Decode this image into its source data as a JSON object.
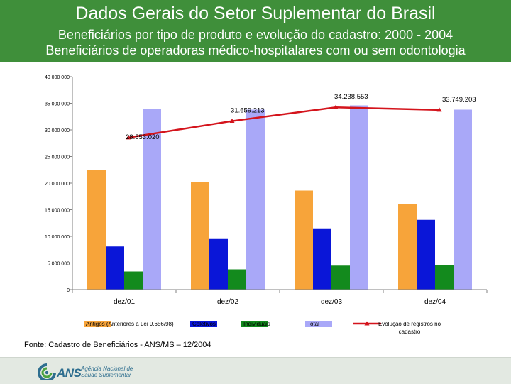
{
  "header": {
    "title": "Dados Gerais do Setor Suplementar do Brasil",
    "subtitle1": "Beneficiários por tipo de produto e evolução do cadastro: 2000 - 2004",
    "subtitle2": "Beneficiários de operadoras médico-hospitalares com ou sem odontologia"
  },
  "source": "Fonte: Cadastro de Beneficiários - ANS/MS – 12/2004",
  "footer": {
    "logo_name": "ANS",
    "logo_line1": "Agência Nacional de",
    "logo_line2": "Saúde Suplementar"
  },
  "colors": {
    "header_bg": "#3f8f3a",
    "antigos": "#f7a43a",
    "coletivos": "#0a16d8",
    "individuais": "#138a1d",
    "total": "#a9a8f8",
    "evolucao": "#d4141c"
  },
  "chart_data": {
    "type": "bar",
    "categories": [
      "dez/01",
      "dez/02",
      "dez/03",
      "dez/04"
    ],
    "ylim": [
      0,
      40000000
    ],
    "yticks": [
      {
        "value": 0,
        "label": "0"
      },
      {
        "value": 5000000,
        "label": "5 000 000"
      },
      {
        "value": 10000000,
        "label": "10 000 000"
      },
      {
        "value": 15000000,
        "label": "15 000 000"
      },
      {
        "value": 20000000,
        "label": "20 000 000"
      },
      {
        "value": 25000000,
        "label": "25 000 000"
      },
      {
        "value": 30000000,
        "label": "30 000 000"
      },
      {
        "value": 35000000,
        "label": "35 000 000"
      },
      {
        "value": 40000000,
        "label": "40 000 000"
      }
    ],
    "series": [
      {
        "name": "Antigos (Anteriores à Lei 9.656/98)",
        "color": "#f7a43a",
        "values": [
          22400000,
          20200000,
          18600000,
          16100000
        ]
      },
      {
        "name": "Coletivos",
        "color": "#0a16d8",
        "values": [
          8100000,
          9500000,
          11500000,
          13100000
        ]
      },
      {
        "name": "Individuais",
        "color": "#138a1d",
        "values": [
          3400000,
          3800000,
          4500000,
          4600000
        ]
      },
      {
        "name": "Total",
        "color": "#a9a8f8",
        "values": [
          33900000,
          33800000,
          34600000,
          33800000
        ]
      }
    ],
    "line": {
      "name": "Evolução de registros no cadastro",
      "color": "#d4141c",
      "values": [
        28553020,
        31659213,
        34238553,
        33749203
      ],
      "labels": [
        "28.553.020",
        "31.659.213",
        "34.238.553",
        "33.749.203"
      ]
    },
    "grid": false,
    "legend": "bottom"
  }
}
